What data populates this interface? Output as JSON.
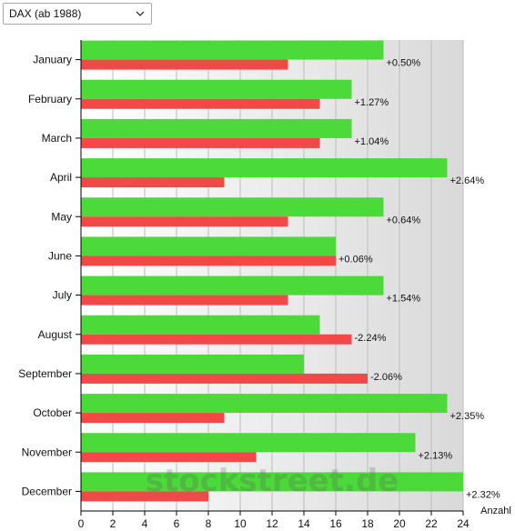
{
  "index_select": {
    "value": "DAX (ab 1988)",
    "icon": "chevron-down-icon"
  },
  "watermark": "stockstreet.de",
  "chart_data": {
    "type": "bar",
    "orientation": "horizontal",
    "categories": [
      "January",
      "February",
      "March",
      "April",
      "May",
      "June",
      "July",
      "August",
      "September",
      "October",
      "November",
      "December"
    ],
    "series": [
      {
        "color": "#4cd93a",
        "values": [
          19,
          17,
          17,
          23,
          19,
          16,
          19,
          15,
          14,
          23,
          21,
          24
        ]
      },
      {
        "color": "#f24848",
        "values": [
          13,
          15,
          15,
          9,
          13,
          16,
          13,
          17,
          18,
          9,
          11,
          8
        ]
      }
    ],
    "annotations": [
      "+0.50%",
      "+1.27%",
      "+1.04%",
      "+2.64%",
      "+0.64%",
      "+0.06%",
      "+1.54%",
      "-2.24%",
      "-2.06%",
      "+2.35%",
      "+2.13%",
      "+2.32%"
    ],
    "xlabel": "Anzahl",
    "xlim": [
      0,
      24
    ],
    "xticks": [
      0,
      2,
      4,
      6,
      8,
      10,
      12,
      14,
      16,
      18,
      20,
      22,
      24
    ],
    "grid": "vertical",
    "legend": "none"
  }
}
